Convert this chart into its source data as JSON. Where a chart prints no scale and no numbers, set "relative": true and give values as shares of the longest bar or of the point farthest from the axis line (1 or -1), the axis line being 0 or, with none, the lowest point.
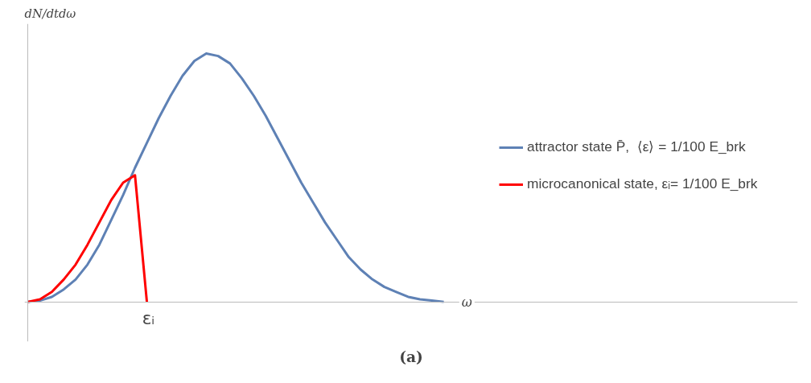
{
  "chart_data": {
    "type": "line",
    "relative": true,
    "ylabel": "dN/dtdω",
    "xlabel": "ω",
    "categories": [
      null,
      null,
      null,
      null,
      null,
      null,
      null,
      null,
      null,
      null,
      null,
      null,
      null,
      null,
      null,
      null,
      null,
      null,
      null,
      null,
      null,
      null,
      null,
      null,
      null,
      null,
      null,
      null,
      null,
      null,
      null,
      null,
      null,
      null,
      null,
      null
    ],
    "series": [
      {
        "name": "attractor state P̄,  ⟨ε⟩ = 1/100 E_brk",
        "color": "#5e81b5",
        "values": [
          0,
          0.005,
          0.02,
          0.05,
          0.09,
          0.15,
          0.23,
          0.33,
          0.43,
          0.54,
          0.64,
          0.74,
          0.83,
          0.91,
          0.97,
          1.0,
          0.99,
          0.96,
          0.9,
          0.83,
          0.75,
          0.66,
          0.57,
          0.48,
          0.4,
          0.32,
          0.25,
          0.18,
          0.13,
          0.09,
          0.06,
          0.04,
          0.02,
          0.01,
          0.005,
          0
        ]
      },
      {
        "name": "microcanonical state, εᵢ= 1/100 E_brk",
        "color": "#ff0000",
        "values": [
          0,
          0.01,
          0.04,
          0.09,
          0.15,
          0.23,
          0.32,
          0.41,
          0.48,
          0.51,
          0,
          null,
          null,
          null,
          null,
          null,
          null,
          null,
          null,
          null,
          null,
          null,
          null,
          null,
          null,
          null,
          null,
          null,
          null,
          null,
          null,
          null,
          null,
          null,
          null,
          null
        ]
      }
    ],
    "annotations": [
      "εᵢ",
      "(a)"
    ],
    "legend": "right",
    "tick_labels": false
  }
}
